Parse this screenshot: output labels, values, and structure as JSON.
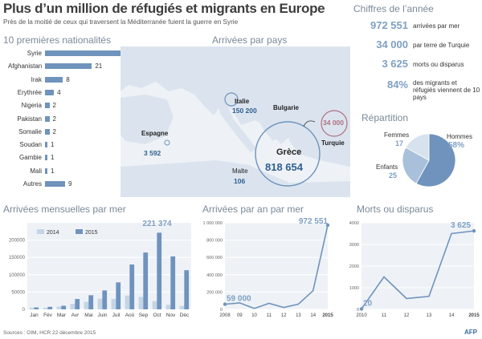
{
  "header": {
    "title": "Plus d’un million de réfugiés et migrants en Europe",
    "subtitle": "Près de la moitié de ceux qui traversent la Méditerranée fuient la guerre en Syrie"
  },
  "key_figures": {
    "title": "Chiffres de l’année",
    "items": [
      {
        "value": "972 551",
        "label": "arrivées par mer"
      },
      {
        "value": "34 000",
        "label": "par terre de Turquie"
      },
      {
        "value": "3 625",
        "label": "morts ou disparus"
      },
      {
        "value": "84%",
        "label": "des migrants et réfugiés viennent de 10 pays"
      }
    ]
  },
  "repartition": {
    "title": "Répartition",
    "femmes_label": "Femmes",
    "femmes_value": "17",
    "hommes_label": "Hommes",
    "hommes_value": "58%",
    "enfants_label": "Enfants",
    "enfants_value": "25"
  },
  "nationalities": {
    "title": "10 premières nationalités",
    "items": [
      {
        "name": "Syrie",
        "value": 45,
        "label": "45%"
      },
      {
        "name": "Afghanistan",
        "value": 21,
        "label": "21"
      },
      {
        "name": "Irak",
        "value": 8,
        "label": "8"
      },
      {
        "name": "Erythrée",
        "value": 4,
        "label": "4"
      },
      {
        "name": "Nigeria",
        "value": 2,
        "label": "2"
      },
      {
        "name": "Pakistan",
        "value": 2,
        "label": "2"
      },
      {
        "name": "Somalie",
        "value": 2,
        "label": "2"
      },
      {
        "name": "Soudan",
        "value": 1,
        "label": "1"
      },
      {
        "name": "Gambie",
        "value": 1,
        "label": "1"
      },
      {
        "name": "Mali",
        "value": 1,
        "label": "1"
      },
      {
        "name": "Autres",
        "value": 9,
        "label": "9"
      }
    ]
  },
  "map": {
    "title": "Arrivées par pays",
    "countries": [
      {
        "name": "Italie",
        "value": "150 200"
      },
      {
        "name": "Espagne",
        "value": "3 592"
      },
      {
        "name": "Grèce",
        "value": "818 654"
      },
      {
        "name": "Malte",
        "value": "106"
      },
      {
        "name": "Bulgarie",
        "value": ""
      },
      {
        "name": "Turquie",
        "value": "34 000"
      }
    ]
  },
  "chart_data": [
    {
      "type": "bar",
      "title": "Arrivées mensuelles par mer",
      "categories": [
        "Jan",
        "Fév",
        "Mar",
        "Avr",
        "Mai",
        "Juin",
        "Juil",
        "Aoû",
        "Sep",
        "Oct",
        "Nov",
        "Déc"
      ],
      "series": [
        {
          "name": "2014",
          "color": "#c5d5e6",
          "values": [
            5000,
            4500,
            8000,
            16000,
            22000,
            31000,
            30000,
            40000,
            36000,
            24000,
            13000,
            10000
          ]
        },
        {
          "name": "2015",
          "color": "#6f93bd",
          "values": [
            5550,
            7270,
            10440,
            29860,
            40740,
            54590,
            77960,
            129520,
            164170,
            221374,
            152860,
            113000
          ]
        }
      ],
      "ytick_labels": [
        "0",
        "50000",
        "100000",
        "150000",
        "200000"
      ],
      "ylim": [
        0,
        250000
      ],
      "annotation": "221 374",
      "legend": "top-left"
    },
    {
      "type": "line",
      "title": "Arrivées par an par mer",
      "x": [
        "2008",
        "09",
        "10",
        "11",
        "12",
        "13",
        "14",
        "2015"
      ],
      "values": [
        59000,
        75000,
        10000,
        70000,
        22000,
        60000,
        216000,
        972551
      ],
      "ytick_labels": [
        "0",
        "200 000",
        "400 000",
        "600 000",
        "800 000",
        "1 000 000"
      ],
      "ylim": [
        0,
        1000000
      ],
      "annotations": [
        "59 000",
        "972 551"
      ]
    },
    {
      "type": "line",
      "title": "Morts ou disparus",
      "x": [
        "2010",
        "11",
        "12",
        "13",
        "14",
        "2015"
      ],
      "values": [
        20,
        1500,
        500,
        600,
        3500,
        3625
      ],
      "ytick_labels": [
        "0",
        "1000",
        "2000",
        "3000",
        "4000"
      ],
      "ylim": [
        0,
        4000
      ],
      "annotations": [
        "20",
        "3 625"
      ]
    }
  ],
  "footer": {
    "source": "Sources : OIM, HCR 22 décembre 2015",
    "logo": "AFP"
  },
  "colors": {
    "bar_dark": "#6f93bd",
    "bar_light": "#c5d5e6",
    "accent_value": "#7ea0c4",
    "map_land": "#dbe4ee",
    "map_sea": "#ffffff",
    "turkey_circle": "#b07085"
  }
}
